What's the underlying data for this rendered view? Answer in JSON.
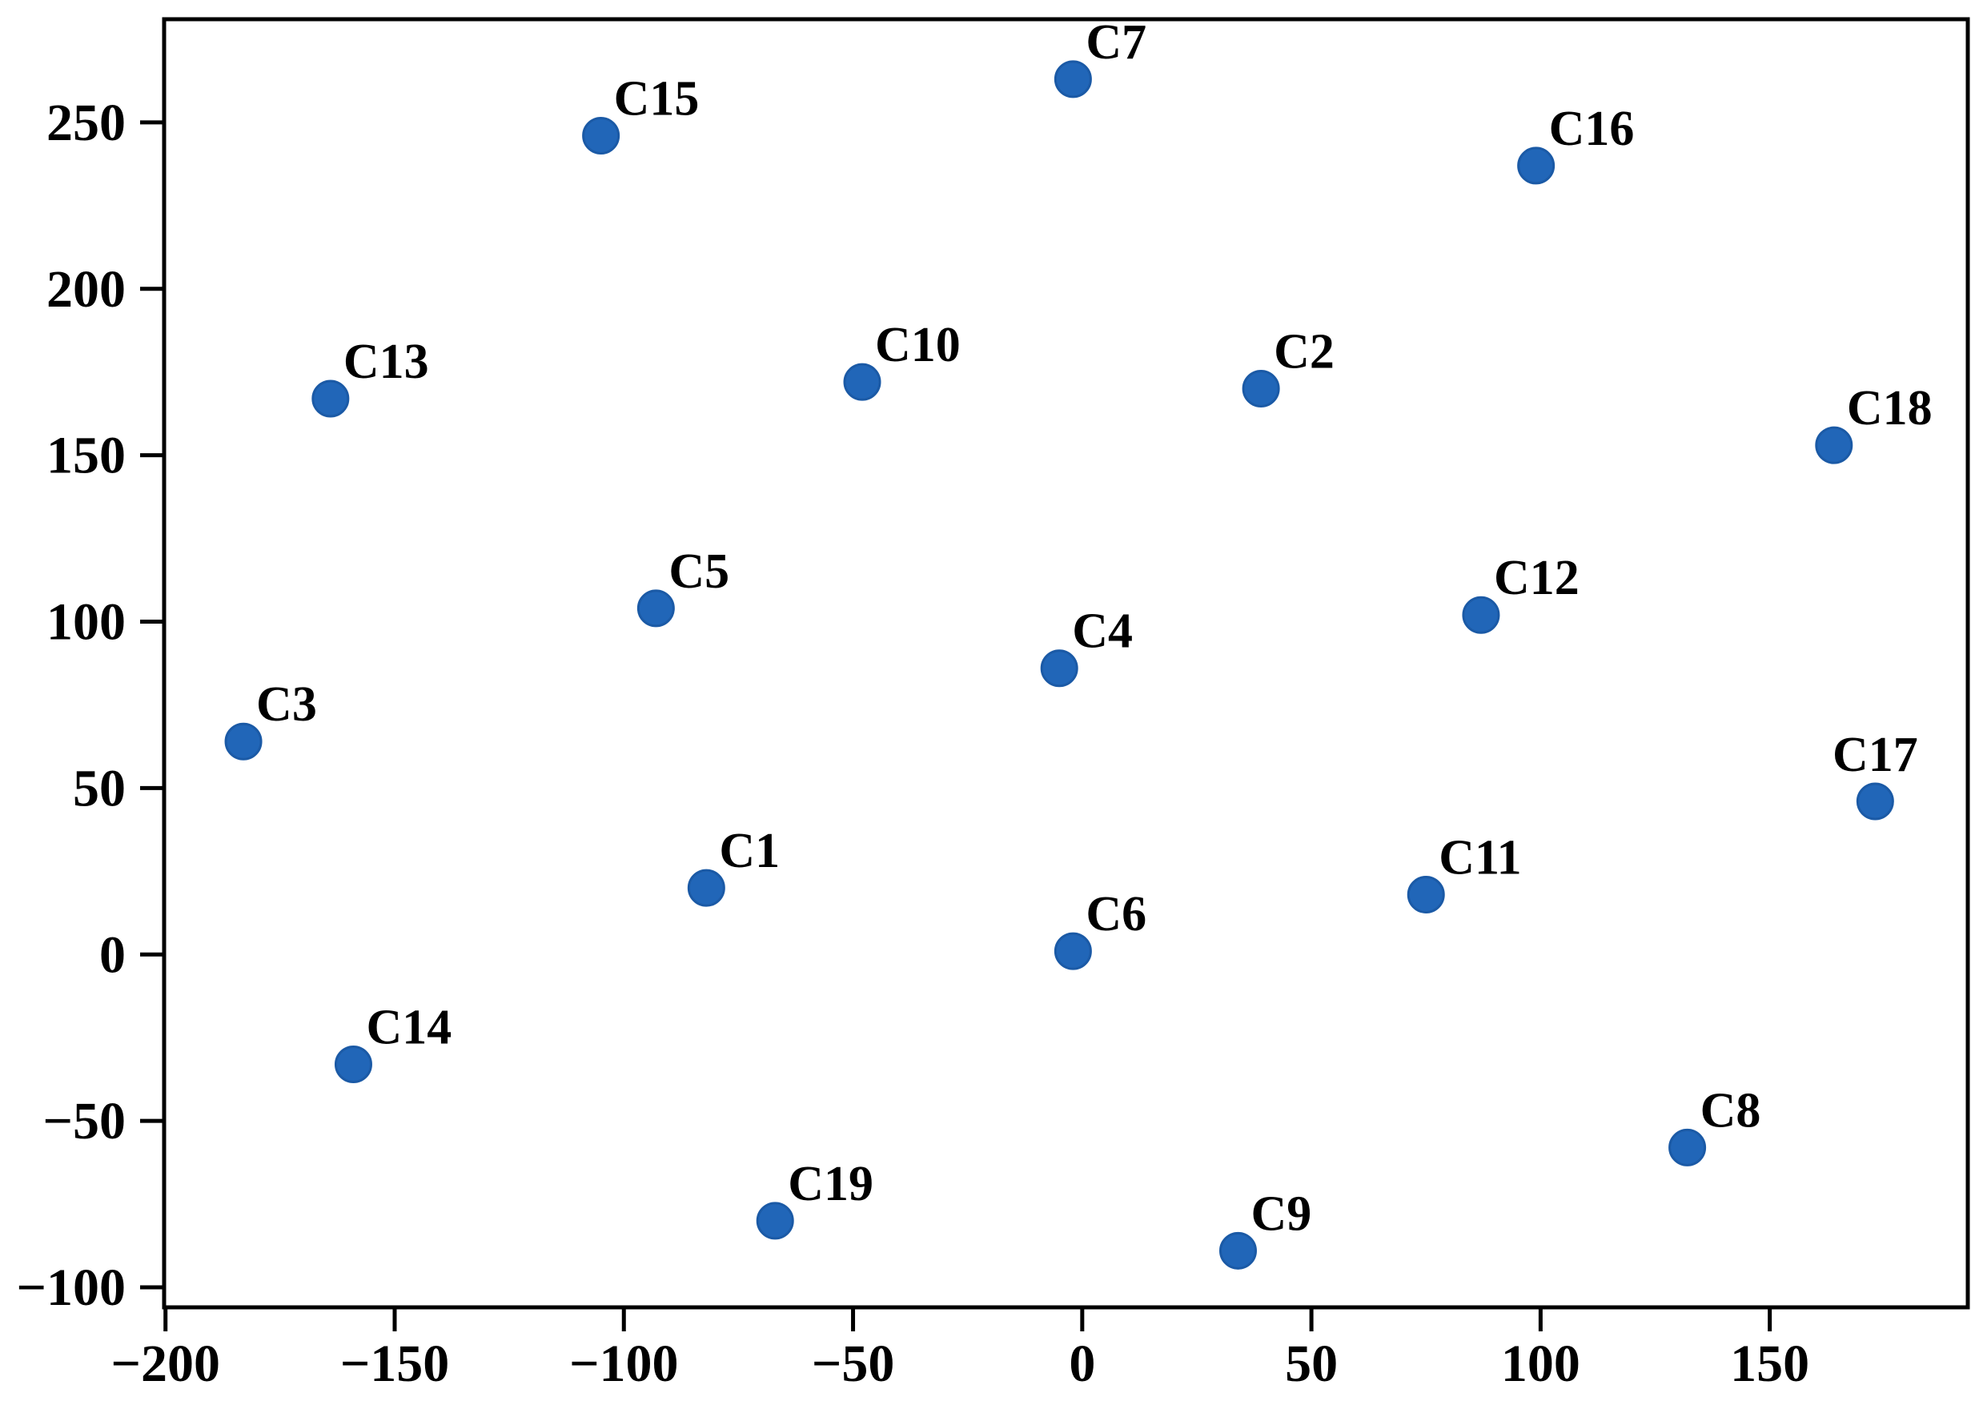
{
  "figure": {
    "background": "#ffffff",
    "frame_color": "#000000"
  },
  "chart_data": {
    "type": "scatter",
    "title": "",
    "xlabel": "",
    "ylabel": "",
    "grid": false,
    "legend": null,
    "xlim": [
      -200.3,
      193.2
    ],
    "ylim": [
      -106,
      281
    ],
    "xtick_values": [
      -200,
      -150,
      -100,
      -50,
      0,
      50,
      100,
      150
    ],
    "xtick_labels": [
      "−200",
      "−150",
      "−100",
      "−50",
      "0",
      "50",
      "100",
      "150"
    ],
    "ytick_values": [
      -100,
      -50,
      0,
      50,
      100,
      150,
      200,
      250
    ],
    "ytick_labels": [
      "−100",
      "−50",
      "0",
      "50",
      "100",
      "150",
      "200",
      "250"
    ],
    "marker_color": "#2166b8",
    "marker_edge_color": "#1b5aa6",
    "points": [
      {
        "label": "C1",
        "x": -82,
        "y": 20,
        "label_anchor": "right"
      },
      {
        "label": "C2",
        "x": 39,
        "y": 170,
        "label_anchor": "right"
      },
      {
        "label": "C3",
        "x": -183,
        "y": 64,
        "label_anchor": "right"
      },
      {
        "label": "C4",
        "x": -5,
        "y": 86,
        "label_anchor": "right"
      },
      {
        "label": "C5",
        "x": -93,
        "y": 104,
        "label_anchor": "right"
      },
      {
        "label": "C6",
        "x": -2,
        "y": 1,
        "label_anchor": "right"
      },
      {
        "label": "C7",
        "x": -2,
        "y": 263,
        "label_anchor": "right"
      },
      {
        "label": "C8",
        "x": 132,
        "y": -58,
        "label_anchor": "right"
      },
      {
        "label": "C9",
        "x": 34,
        "y": -89,
        "label_anchor": "right"
      },
      {
        "label": "C10",
        "x": -48,
        "y": 172,
        "label_anchor": "right"
      },
      {
        "label": "C11",
        "x": 75,
        "y": 18,
        "label_anchor": "right"
      },
      {
        "label": "C12",
        "x": 87,
        "y": 102,
        "label_anchor": "right"
      },
      {
        "label": "C13",
        "x": -164,
        "y": 167,
        "label_anchor": "right"
      },
      {
        "label": "C14",
        "x": -159,
        "y": -33,
        "label_anchor": "right"
      },
      {
        "label": "C15",
        "x": -105,
        "y": 246,
        "label_anchor": "right"
      },
      {
        "label": "C16",
        "x": 99,
        "y": 237,
        "label_anchor": "right"
      },
      {
        "label": "C17",
        "x": 173,
        "y": 46,
        "label_anchor": "above"
      },
      {
        "label": "C18",
        "x": 164,
        "y": 153,
        "label_anchor": "right"
      },
      {
        "label": "C19",
        "x": -67,
        "y": -80,
        "label_anchor": "right"
      }
    ]
  }
}
